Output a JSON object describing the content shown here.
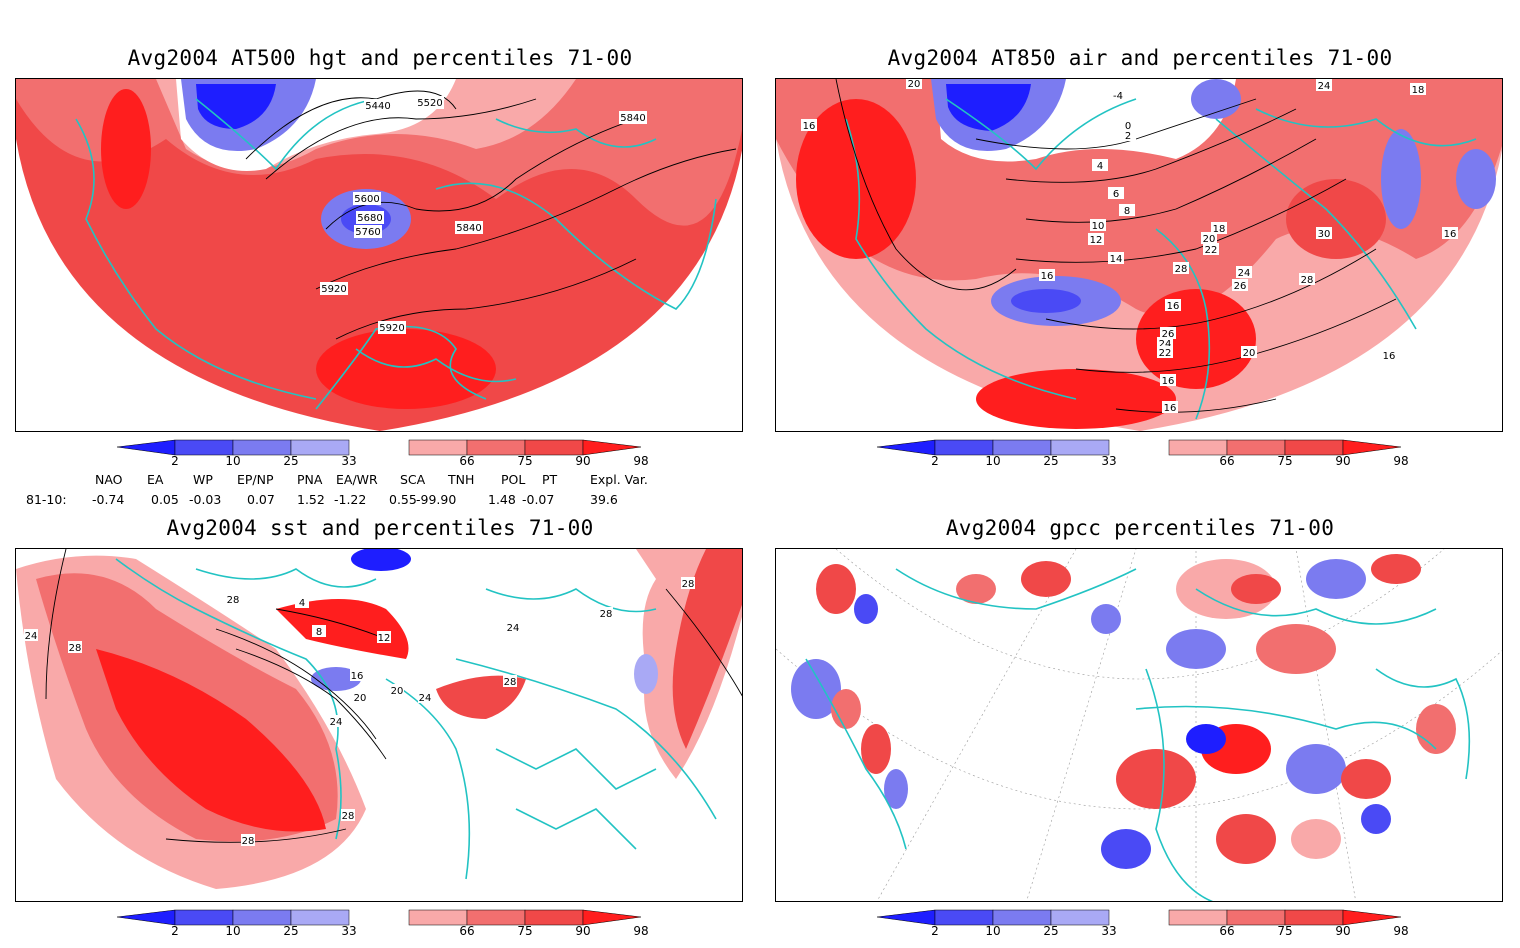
{
  "panels": [
    {
      "id": "p1",
      "title": "Avg2004 AT500 hgt and percentiles 71-00",
      "contour_labels": [
        "5440",
        "5520",
        "5840",
        "5600",
        "5680",
        "5760",
        "5840",
        "5920",
        "5920"
      ]
    },
    {
      "id": "p2",
      "title": "Avg2004 AT850 air and percentiles 71-00",
      "contour_labels": [
        "20",
        "-4",
        "24",
        "18",
        "16",
        "0",
        "2",
        "4",
        "6",
        "8",
        "10",
        "12",
        "14",
        "16",
        "18",
        "20",
        "22",
        "28",
        "16",
        "30",
        "24",
        "26",
        "28",
        "26",
        "24",
        "22",
        "20",
        "16",
        "16",
        "16",
        "16"
      ]
    },
    {
      "id": "p3",
      "title": "Avg2004 sst and percentiles 71-00",
      "contour_labels": [
        "24",
        "28",
        "28",
        "4",
        "8",
        "12",
        "16",
        "20",
        "24",
        "28",
        "28",
        "20",
        "24",
        "28",
        "28",
        "24",
        "28"
      ]
    },
    {
      "id": "p4",
      "title": "Avg2004 gpcc percentiles 71-00",
      "contour_labels": []
    }
  ],
  "legend": {
    "ticks": [
      "2",
      "10",
      "25",
      "33",
      "66",
      "75",
      "90",
      "98"
    ],
    "colors": {
      "blue_dark": "#1e1eff",
      "blue_mid": "#4a4af5",
      "blue_light": "#7b7bf0",
      "blue_pale": "#a9a9f5",
      "red_pale": "#f9a9a9",
      "red_light": "#f26f6f",
      "red_mid": "#f04848",
      "red_dark": "#ff1e1e"
    }
  },
  "index_table": {
    "headers": [
      "NAO",
      "EA",
      "WP",
      "EP/NP",
      "PNA",
      "EA/WR",
      "SCA",
      "TNH",
      "POL",
      "PT",
      "Expl. Var."
    ],
    "row_label": "81-10:",
    "values": [
      "-0.74",
      "0.05",
      "-0.03",
      "0.07",
      "1.52",
      "-1.22",
      "0.55",
      "-99.90",
      "1.48",
      "-0.07",
      "39.6"
    ]
  },
  "colors": {
    "coastline": "#22c3c3",
    "contour": "#000000",
    "background": "#ffffff"
  }
}
